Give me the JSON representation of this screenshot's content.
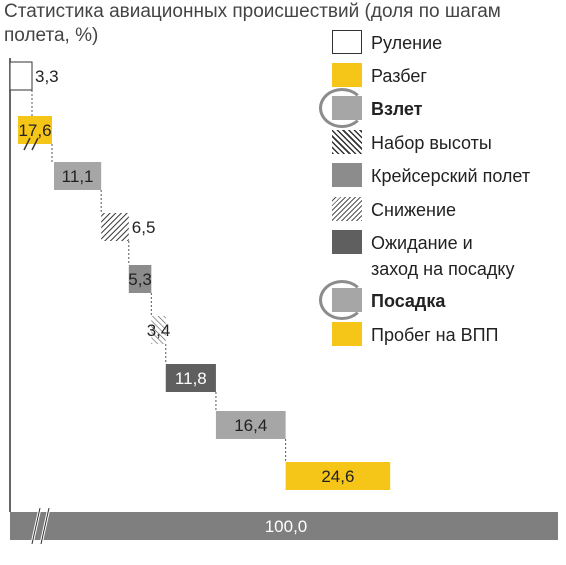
{
  "title": "Статистика авиационных происшествий (доля по шагам\nполета, %)",
  "colors": {
    "taxi": "#ffffff",
    "takeoff_roll": "#f5c518",
    "takeoff": "#a6a6a6",
    "climb": "hatch",
    "cruise": "#8c8c8c",
    "descent": "hatch-light",
    "approach": "#5f5f5f",
    "landing": "#a6a6a6",
    "landing_roll": "#f5c518",
    "total": "#7f7f7f"
  },
  "legend": [
    {
      "label": "Руление",
      "key": "taxi",
      "bold": false,
      "circled": false
    },
    {
      "label": "Разбег",
      "key": "takeoff_roll",
      "bold": false,
      "circled": false
    },
    {
      "label": "Взлет",
      "key": "takeoff",
      "bold": true,
      "circled": true
    },
    {
      "label": "Набор высоты",
      "key": "climb",
      "bold": false,
      "circled": false
    },
    {
      "label": "Крейсерский полет",
      "key": "cruise",
      "bold": false,
      "circled": false
    },
    {
      "label": "Снижение",
      "key": "descent",
      "bold": false,
      "circled": false
    },
    {
      "label": "Ожидание и\nзаход на посадку",
      "key": "approach",
      "bold": false,
      "circled": false
    },
    {
      "label": "Посадка",
      "key": "landing",
      "bold": true,
      "circled": true
    },
    {
      "label": "Пробег на ВПП",
      "key": "landing_roll",
      "bold": false,
      "circled": false
    }
  ],
  "chart_data": {
    "type": "bar",
    "subtype": "waterfall",
    "orientation": "horizontal",
    "title": "Статистика авиационных происшествий (доля по шагам полета, %)",
    "categories": [
      "Руление",
      "Разбег",
      "Взлет",
      "Набор высоты",
      "Крейсерский полет",
      "Снижение",
      "Ожидание и заход на посадку",
      "Посадка",
      "Пробег на ВПП"
    ],
    "values": [
      3.3,
      17.6,
      11.1,
      6.5,
      5.3,
      3.4,
      11.8,
      16.4,
      24.6
    ],
    "labels": [
      "3,3",
      "17,6",
      "11,1",
      "6,5",
      "5,3",
      "3,4",
      "11,8",
      "16,4",
      "24,6"
    ],
    "total": {
      "value": 100.0,
      "label": "100,0"
    },
    "axis_break": true,
    "legend_position": "right"
  }
}
